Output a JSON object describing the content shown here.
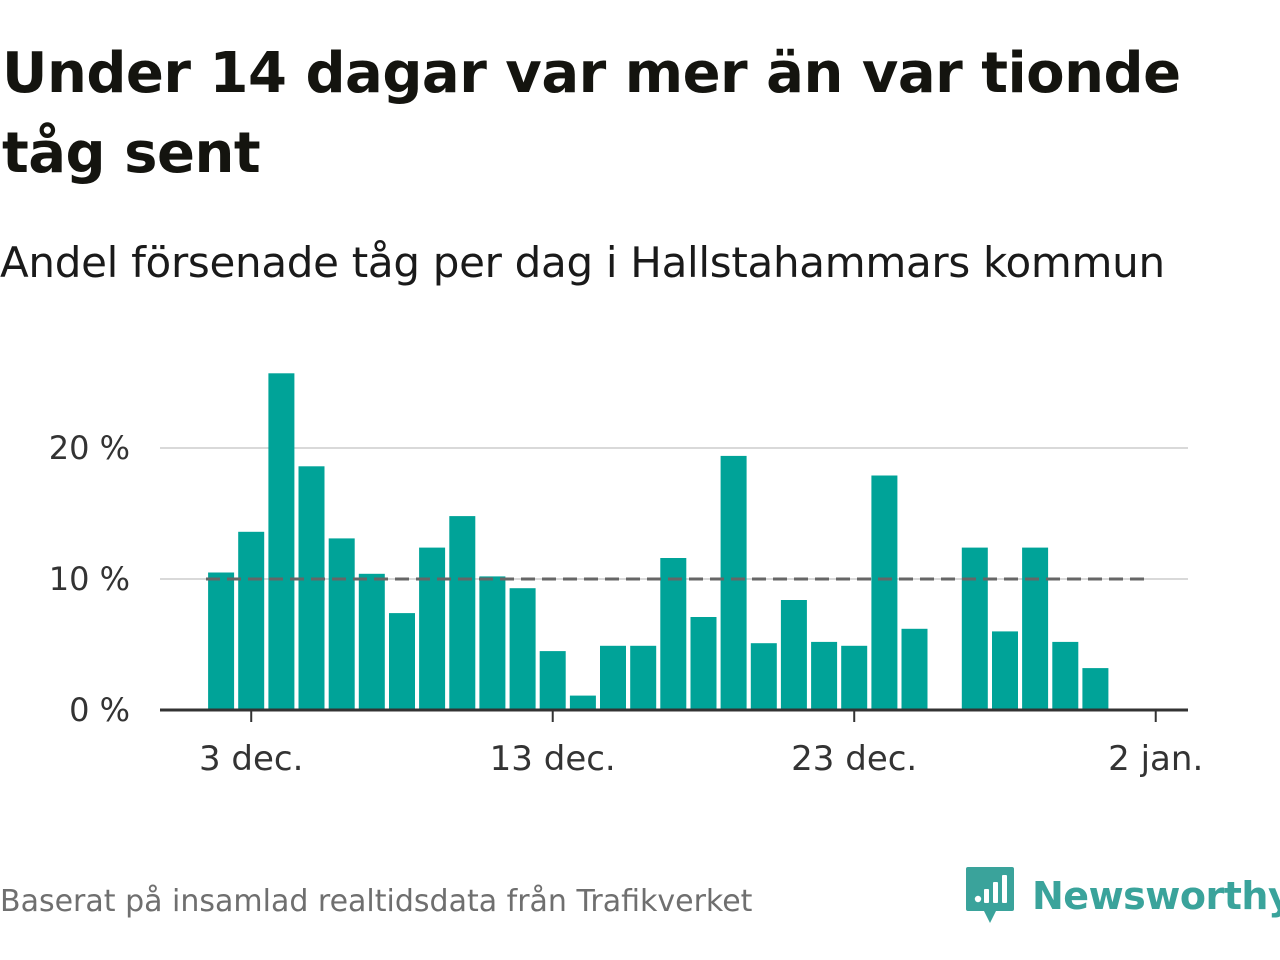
{
  "title": "Under 14 dagar var mer än var tionde tåg sent",
  "subtitle": "Andel försenade tåg per dag i Hallstahammars kommun",
  "source": "Baserat på insamlad realtidsdata från Trafikverket",
  "brand": {
    "name": "Newsworthy",
    "icon": "newsworthy-logo-icon"
  },
  "colors": {
    "bar": "#00a398",
    "reference_line": "#666666",
    "grid": "#d9d9d9",
    "axis": "#333333",
    "brand": "#3aa39b"
  },
  "chart_data": {
    "type": "bar",
    "x_tick_labels": [
      "3 dec.",
      "13 dec.",
      "23 dec.",
      "2 jan."
    ],
    "y_tick_labels": [
      "0 %",
      "10 %",
      "20 %"
    ],
    "ylim": [
      0,
      27
    ],
    "grid": true,
    "reference_line": {
      "value": 10,
      "style": "dashed"
    },
    "series": [
      {
        "values": [
          {
            "x": "2023-12-02",
            "y": 10.5
          },
          {
            "x": "2023-12-03",
            "y": 13.6
          },
          {
            "x": "2023-12-04",
            "y": 25.7
          },
          {
            "x": "2023-12-05",
            "y": 18.6
          },
          {
            "x": "2023-12-06",
            "y": 13.1
          },
          {
            "x": "2023-12-07",
            "y": 10.4
          },
          {
            "x": "2023-12-08",
            "y": 7.4
          },
          {
            "x": "2023-12-09",
            "y": 12.4
          },
          {
            "x": "2023-12-10",
            "y": 14.8
          },
          {
            "x": "2023-12-11",
            "y": 10.2
          },
          {
            "x": "2023-12-12",
            "y": 9.3
          },
          {
            "x": "2023-12-13",
            "y": 4.5
          },
          {
            "x": "2023-12-14",
            "y": 1.1
          },
          {
            "x": "2023-12-15",
            "y": 4.9
          },
          {
            "x": "2023-12-16",
            "y": 4.9
          },
          {
            "x": "2023-12-17",
            "y": 11.6
          },
          {
            "x": "2023-12-18",
            "y": 7.1
          },
          {
            "x": "2023-12-19",
            "y": 19.4
          },
          {
            "x": "2023-12-20",
            "y": 5.1
          },
          {
            "x": "2023-12-21",
            "y": 8.4
          },
          {
            "x": "2023-12-22",
            "y": 5.2
          },
          {
            "x": "2023-12-23",
            "y": 4.9
          },
          {
            "x": "2023-12-24",
            "y": 17.9
          },
          {
            "x": "2023-12-25",
            "y": 6.2
          },
          {
            "x": "2023-12-26",
            "y": 0
          },
          {
            "x": "2023-12-27",
            "y": 12.4
          },
          {
            "x": "2023-12-28",
            "y": 6.0
          },
          {
            "x": "2023-12-29",
            "y": 12.4
          },
          {
            "x": "2023-12-30",
            "y": 5.2
          },
          {
            "x": "2023-12-31",
            "y": 3.2
          }
        ]
      }
    ]
  }
}
